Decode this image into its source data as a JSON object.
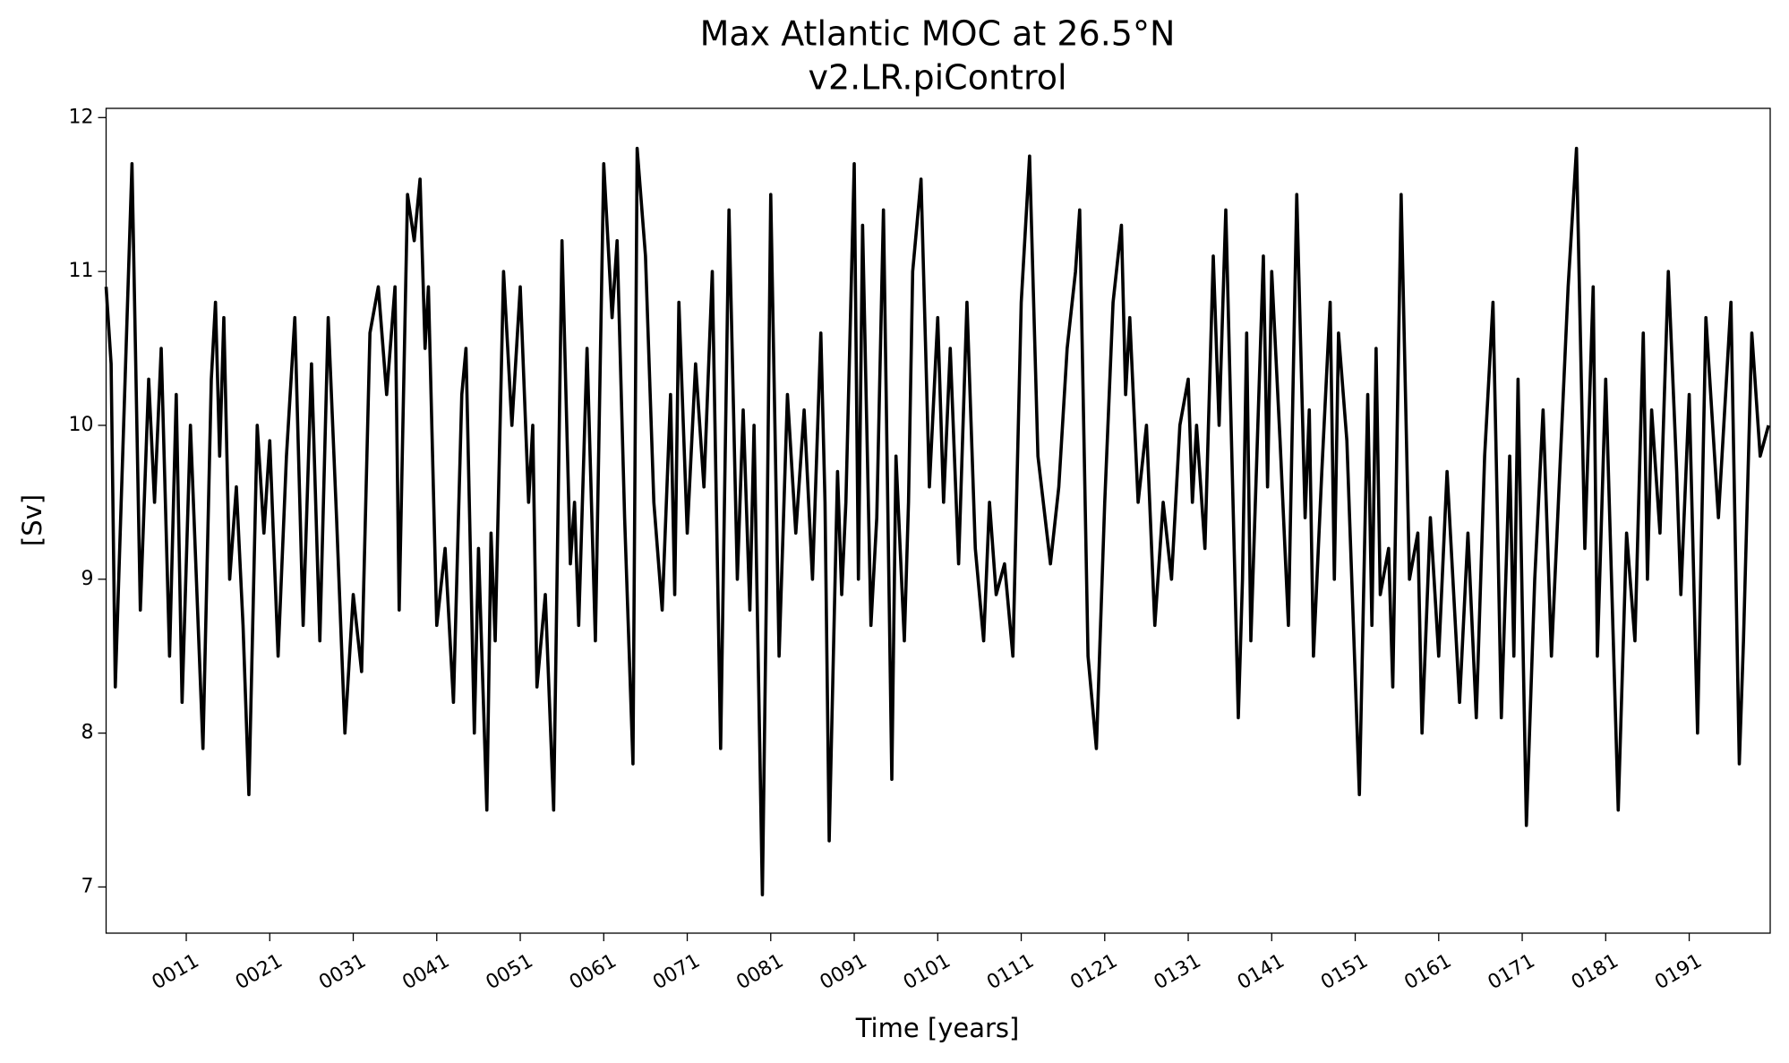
{
  "chart_data": {
    "type": "line",
    "title": "Max Atlantic MOC at 26.5°N",
    "subtitle": "v2.LR.piControl",
    "x_label": "Time [years]",
    "y_label": "[Sv]",
    "xlim": [
      1.4,
      200.7
    ],
    "ylim": [
      6.7,
      12.06
    ],
    "xticks": [
      {
        "value": 11,
        "label": "0011"
      },
      {
        "value": 21,
        "label": "0021"
      },
      {
        "value": 31,
        "label": "0031"
      },
      {
        "value": 41,
        "label": "0041"
      },
      {
        "value": 51,
        "label": "0051"
      },
      {
        "value": 61,
        "label": "0061"
      },
      {
        "value": 71,
        "label": "0071"
      },
      {
        "value": 81,
        "label": "0081"
      },
      {
        "value": 91,
        "label": "0091"
      },
      {
        "value": 101,
        "label": "0101"
      },
      {
        "value": 111,
        "label": "0111"
      },
      {
        "value": 121,
        "label": "0121"
      },
      {
        "value": 131,
        "label": "0131"
      },
      {
        "value": 141,
        "label": "0141"
      },
      {
        "value": 151,
        "label": "0151"
      },
      {
        "value": 161,
        "label": "0161"
      },
      {
        "value": 171,
        "label": "0171"
      },
      {
        "value": 181,
        "label": "0181"
      },
      {
        "value": 191,
        "label": "0191"
      }
    ],
    "yticks": [
      7,
      8,
      9,
      10,
      11,
      12
    ],
    "grid": false,
    "series": [
      {
        "color": "#000000",
        "x": [
          1.4,
          2,
          2.5,
          4.5,
          5.5,
          6.5,
          7.2,
          8,
          9,
          9.8,
          10.5,
          11.5,
          13,
          14,
          14.5,
          15,
          15.5,
          16.2,
          17,
          17.8,
          18.5,
          19.5,
          20.3,
          21,
          21.5,
          22,
          23,
          24,
          25,
          26,
          27,
          28,
          29,
          30,
          31,
          32,
          33,
          34,
          35,
          36,
          36.5,
          37.5,
          38.3,
          39,
          39.6,
          40,
          41,
          42,
          43,
          44,
          44.5,
          45.5,
          46,
          47,
          47.5,
          48,
          49,
          50,
          51,
          52,
          52.5,
          53,
          54,
          55,
          56,
          57,
          57.5,
          58,
          59,
          60,
          61,
          62,
          62.6,
          63.5,
          64.5,
          65,
          66,
          67,
          68,
          69,
          69.5,
          70,
          71,
          72,
          73,
          74,
          75,
          76,
          77,
          77.7,
          78.5,
          79,
          80,
          80.5,
          81,
          82,
          83,
          84,
          85,
          86,
          87,
          87.5,
          88,
          89,
          89.5,
          90,
          91,
          91.5,
          92,
          93,
          93.7,
          94.5,
          95.5,
          96,
          97,
          97.5,
          98,
          99,
          100,
          101,
          101.7,
          102.5,
          103.5,
          104.5,
          105.5,
          106.5,
          107.2,
          108,
          109,
          110,
          111,
          112,
          113,
          114.5,
          115.5,
          116.5,
          117.5,
          118,
          119,
          120,
          121,
          122,
          123,
          123.5,
          124,
          125,
          126,
          127,
          128,
          129,
          130,
          131,
          131.5,
          132,
          133,
          134,
          134.7,
          135.5,
          137,
          137.5,
          138,
          138.5,
          140,
          140.5,
          141,
          142,
          143,
          144,
          145,
          145.5,
          146,
          147,
          148,
          148.5,
          149,
          150,
          151.5,
          152.5,
          153,
          153.5,
          154,
          155,
          155.5,
          156.5,
          157.5,
          158.5,
          159,
          160,
          161,
          162,
          163.5,
          164.5,
          165.5,
          166.5,
          167.5,
          168,
          168.5,
          169.5,
          170,
          170.5,
          171.5,
          172.5,
          173.5,
          174.5,
          175.5,
          176.5,
          177.5,
          178.5,
          179.5,
          180,
          181,
          182.5,
          183.5,
          184.5,
          185.5,
          186,
          186.5,
          187.5,
          188.5,
          189.5,
          190,
          191,
          192,
          193,
          194.5,
          196,
          197,
          197.5,
          198.5,
          199.5,
          200.5
        ],
        "values": [
          10.9,
          10.4,
          8.3,
          11.7,
          8.8,
          10.3,
          9.5,
          10.5,
          8.5,
          10.2,
          8.2,
          10,
          7.9,
          10.3,
          10.8,
          9.8,
          10.7,
          9,
          9.6,
          8.7,
          7.6,
          10,
          9.3,
          9.9,
          9.2,
          8.5,
          9.8,
          10.7,
          8.7,
          10.4,
          8.6,
          10.7,
          9.4,
          8,
          8.9,
          8.4,
          10.6,
          10.9,
          10.2,
          10.9,
          8.8,
          11.5,
          11.2,
          11.6,
          10.5,
          10.9,
          8.7,
          9.2,
          8.2,
          10.2,
          10.5,
          8,
          9.2,
          7.5,
          9.3,
          8.6,
          11,
          10,
          10.9,
          9.5,
          10,
          8.3,
          8.9,
          7.5,
          11.2,
          9.1,
          9.5,
          8.7,
          10.5,
          8.6,
          11.7,
          10.7,
          11.2,
          9.4,
          7.8,
          11.8,
          11.1,
          9.5,
          8.8,
          10.2,
          8.9,
          10.8,
          9.3,
          10.4,
          9.6,
          11,
          7.9,
          11.4,
          9,
          10.1,
          8.8,
          10,
          6.95,
          9,
          11.5,
          8.5,
          10.2,
          9.3,
          10.1,
          9,
          10.6,
          9.5,
          7.3,
          9.7,
          8.9,
          9.5,
          11.7,
          9,
          11.3,
          8.7,
          9.4,
          11.4,
          7.7,
          9.8,
          8.6,
          9.5,
          11,
          11.6,
          9.6,
          10.7,
          9.5,
          10.5,
          9.1,
          10.8,
          9.2,
          8.6,
          9.5,
          8.9,
          9.1,
          8.5,
          10.8,
          11.75,
          9.8,
          9.1,
          9.6,
          10.5,
          11,
          11.4,
          8.5,
          7.9,
          9.5,
          10.8,
          11.3,
          10.2,
          10.7,
          9.5,
          10,
          8.7,
          9.5,
          9,
          10,
          10.3,
          9.5,
          10,
          9.2,
          11.1,
          10,
          11.4,
          8.1,
          9,
          10.6,
          8.6,
          11.1,
          9.6,
          11,
          9.9,
          8.7,
          11.5,
          9.4,
          10.1,
          8.5,
          9.7,
          10.8,
          9,
          10.6,
          9.9,
          7.6,
          10.2,
          8.7,
          10.5,
          8.9,
          9.2,
          8.3,
          11.5,
          9,
          9.3,
          8,
          9.4,
          8.5,
          9.7,
          8.2,
          9.3,
          8.1,
          9.8,
          10.8,
          9.5,
          8.1,
          9.8,
          8.5,
          10.3,
          7.4,
          9,
          10.1,
          8.5,
          9.7,
          10.9,
          11.8,
          9.2,
          10.9,
          8.5,
          10.3,
          7.5,
          9.3,
          8.6,
          10.6,
          9,
          10.1,
          9.3,
          11,
          9.7,
          8.9,
          10.2,
          8,
          10.7,
          9.4,
          10.8,
          7.8,
          8.6,
          10.6,
          9.8,
          10
        ]
      }
    ]
  }
}
